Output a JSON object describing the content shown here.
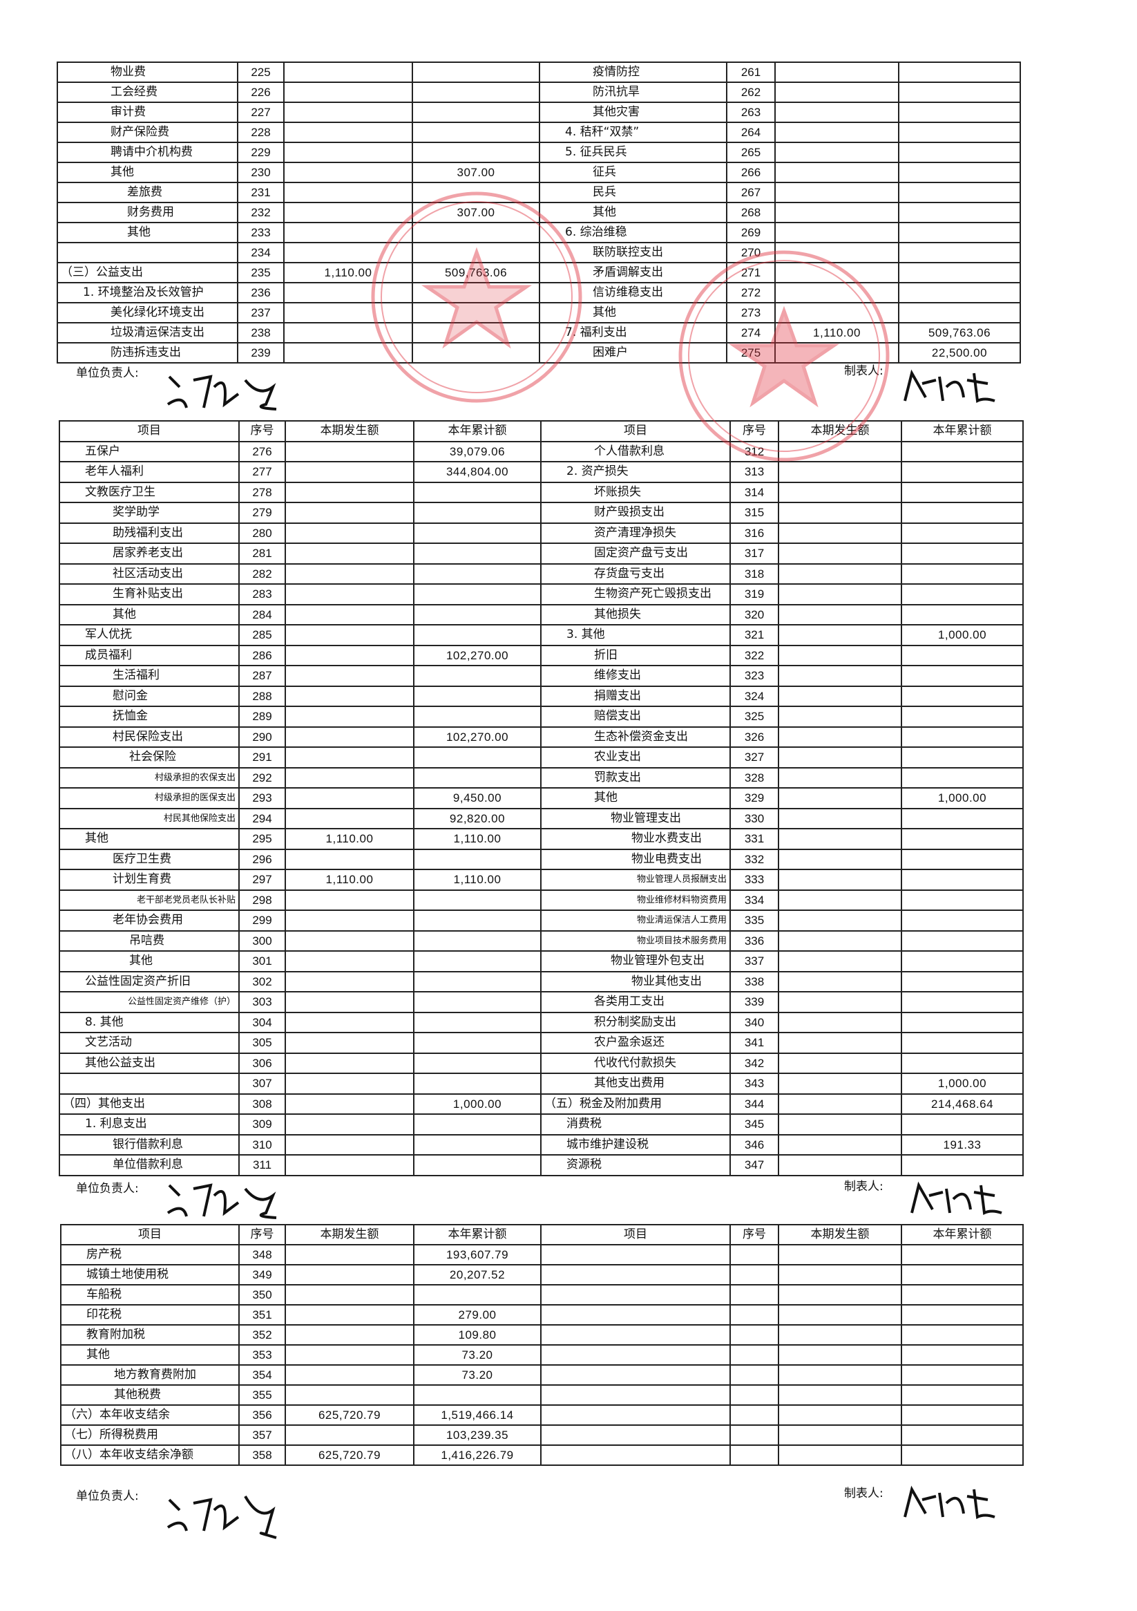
{
  "headers": {
    "item": "项目",
    "no": "序号",
    "current": "本期发生额",
    "ytd": "本年累计额"
  },
  "signatures": {
    "unit_head_label": "单位负责人:",
    "preparer_label": "制表人:"
  },
  "stamp_color": "#e0333f",
  "table1": {
    "left": [
      {
        "name": "物业费",
        "no": "225",
        "current": "",
        "ytd": "",
        "level": 2
      },
      {
        "name": "工会经费",
        "no": "226",
        "current": "",
        "ytd": "",
        "level": 2
      },
      {
        "name": "审计费",
        "no": "227",
        "current": "",
        "ytd": "",
        "level": 2
      },
      {
        "name": "财产保险费",
        "no": "228",
        "current": "",
        "ytd": "",
        "level": 2
      },
      {
        "name": "聘请中介机构费",
        "no": "229",
        "current": "",
        "ytd": "",
        "level": 2
      },
      {
        "name": "其他",
        "no": "230",
        "current": "",
        "ytd": "307.00",
        "level": 2
      },
      {
        "name": "差旅费",
        "no": "231",
        "current": "",
        "ytd": "",
        "level": 3
      },
      {
        "name": "财务费用",
        "no": "232",
        "current": "",
        "ytd": "307.00",
        "level": 3
      },
      {
        "name": "其他",
        "no": "233",
        "current": "",
        "ytd": "",
        "level": 3
      },
      {
        "name": "",
        "no": "234",
        "current": "",
        "ytd": "",
        "level": 2
      },
      {
        "name": "（三）公益支出",
        "no": "235",
        "current": "1,110.00",
        "ytd": "509,763.06",
        "level": 0
      },
      {
        "name": "1. 环境整治及长效管护",
        "no": "236",
        "current": "",
        "ytd": "",
        "level": 1
      },
      {
        "name": "美化绿化环境支出",
        "no": "237",
        "current": "",
        "ytd": "",
        "level": 2
      },
      {
        "name": "垃圾清运保洁支出",
        "no": "238",
        "current": "",
        "ytd": "",
        "level": 2
      },
      {
        "name": "防违拆违支出",
        "no": "239",
        "current": "",
        "ytd": "",
        "level": 2
      }
    ],
    "right": [
      {
        "name": "疫情防控",
        "no": "261",
        "current": "",
        "ytd": "",
        "level": 2
      },
      {
        "name": "防汛抗旱",
        "no": "262",
        "current": "",
        "ytd": "",
        "level": 2
      },
      {
        "name": "其他灾害",
        "no": "263",
        "current": "",
        "ytd": "",
        "level": 2
      },
      {
        "name": "4. 秸秆“双禁”",
        "no": "264",
        "current": "",
        "ytd": "",
        "level": 1
      },
      {
        "name": "5. 征兵民兵",
        "no": "265",
        "current": "",
        "ytd": "",
        "level": 1
      },
      {
        "name": "征兵",
        "no": "266",
        "current": "",
        "ytd": "",
        "level": 2
      },
      {
        "name": "民兵",
        "no": "267",
        "current": "",
        "ytd": "",
        "level": 2
      },
      {
        "name": "其他",
        "no": "268",
        "current": "",
        "ytd": "",
        "level": 2
      },
      {
        "name": "6. 综治维稳",
        "no": "269",
        "current": "",
        "ytd": "",
        "level": 1
      },
      {
        "name": "联防联控支出",
        "no": "270",
        "current": "",
        "ytd": "",
        "level": 2
      },
      {
        "name": "矛盾调解支出",
        "no": "271",
        "current": "",
        "ytd": "",
        "level": 2
      },
      {
        "name": "信访维稳支出",
        "no": "272",
        "current": "",
        "ytd": "",
        "level": 2
      },
      {
        "name": "其他",
        "no": "273",
        "current": "",
        "ytd": "",
        "level": 2
      },
      {
        "name": "7. 福利支出",
        "no": "274",
        "current": "1,110.00",
        "ytd": "509,763.06",
        "level": 1
      },
      {
        "name": "困难户",
        "no": "275",
        "current": "",
        "ytd": "22,500.00",
        "level": 2
      }
    ]
  },
  "table2": {
    "left": [
      {
        "name": "五保户",
        "no": "276",
        "current": "",
        "ytd": "39,079.06",
        "level": 1
      },
      {
        "name": "老年人福利",
        "no": "277",
        "current": "",
        "ytd": "344,804.00",
        "level": 1
      },
      {
        "name": "文教医疗卫生",
        "no": "278",
        "current": "",
        "ytd": "",
        "level": 1
      },
      {
        "name": "奖学助学",
        "no": "279",
        "current": "",
        "ytd": "",
        "level": 2
      },
      {
        "name": "助残福利支出",
        "no": "280",
        "current": "",
        "ytd": "",
        "level": 2
      },
      {
        "name": "居家养老支出",
        "no": "281",
        "current": "",
        "ytd": "",
        "level": 2
      },
      {
        "name": "社区活动支出",
        "no": "282",
        "current": "",
        "ytd": "",
        "level": 2
      },
      {
        "name": "生育补贴支出",
        "no": "283",
        "current": "",
        "ytd": "",
        "level": 2
      },
      {
        "name": "其他",
        "no": "284",
        "current": "",
        "ytd": "",
        "level": 2
      },
      {
        "name": "军人优抚",
        "no": "285",
        "current": "",
        "ytd": "",
        "level": 1
      },
      {
        "name": "成员福利",
        "no": "286",
        "current": "",
        "ytd": "102,270.00",
        "level": 1
      },
      {
        "name": "生活福利",
        "no": "287",
        "current": "",
        "ytd": "",
        "level": 2
      },
      {
        "name": "慰问金",
        "no": "288",
        "current": "",
        "ytd": "",
        "level": 2
      },
      {
        "name": "抚恤金",
        "no": "289",
        "current": "",
        "ytd": "",
        "level": 2
      },
      {
        "name": "村民保险支出",
        "no": "290",
        "current": "",
        "ytd": "102,270.00",
        "level": 2
      },
      {
        "name": "社会保险",
        "no": "291",
        "current": "",
        "ytd": "",
        "level": 3
      },
      {
        "name": "村级承担的农保支出",
        "no": "292",
        "current": "",
        "ytd": "",
        "level": "s"
      },
      {
        "name": "村级承担的医保支出",
        "no": "293",
        "current": "",
        "ytd": "9,450.00",
        "level": "s"
      },
      {
        "name": "村民其他保险支出",
        "no": "294",
        "current": "",
        "ytd": "92,820.00",
        "level": "s"
      },
      {
        "name": "其他",
        "no": "295",
        "current": "1,110.00",
        "ytd": "1,110.00",
        "level": 1
      },
      {
        "name": "医疗卫生费",
        "no": "296",
        "current": "",
        "ytd": "",
        "level": 2
      },
      {
        "name": "计划生育费",
        "no": "297",
        "current": "1,110.00",
        "ytd": "1,110.00",
        "level": 2
      },
      {
        "name": "老干部老党员老队长补贴",
        "no": "298",
        "current": "",
        "ytd": "",
        "level": "s"
      },
      {
        "name": "老年协会费用",
        "no": "299",
        "current": "",
        "ytd": "",
        "level": 2
      },
      {
        "name": "吊唁费",
        "no": "300",
        "current": "",
        "ytd": "",
        "level": 3
      },
      {
        "name": "其他",
        "no": "301",
        "current": "",
        "ytd": "",
        "level": 3
      },
      {
        "name": "公益性固定资产折旧",
        "no": "302",
        "current": "",
        "ytd": "",
        "level": 1
      },
      {
        "name": "公益性固定资产维修（护）",
        "no": "303",
        "current": "",
        "ytd": "",
        "level": "s"
      },
      {
        "name": "8. 其他",
        "no": "304",
        "current": "",
        "ytd": "",
        "level": 1
      },
      {
        "name": "文艺活动",
        "no": "305",
        "current": "",
        "ytd": "",
        "level": 1
      },
      {
        "name": "其他公益支出",
        "no": "306",
        "current": "",
        "ytd": "",
        "level": 1
      },
      {
        "name": "",
        "no": "307",
        "current": "",
        "ytd": "",
        "level": 1
      },
      {
        "name": "（四）其他支出",
        "no": "308",
        "current": "",
        "ytd": "1,000.00",
        "level": 0
      },
      {
        "name": "1. 利息支出",
        "no": "309",
        "current": "",
        "ytd": "",
        "level": 1
      },
      {
        "name": "银行借款利息",
        "no": "310",
        "current": "",
        "ytd": "",
        "level": 2
      },
      {
        "name": "单位借款利息",
        "no": "311",
        "current": "",
        "ytd": "",
        "level": 2
      }
    ],
    "right": [
      {
        "name": "个人借款利息",
        "no": "312",
        "current": "",
        "ytd": "",
        "level": 2
      },
      {
        "name": "2. 资产损失",
        "no": "313",
        "current": "",
        "ytd": "",
        "level": 1
      },
      {
        "name": "坏账损失",
        "no": "314",
        "current": "",
        "ytd": "",
        "level": 2
      },
      {
        "name": "财产毁损支出",
        "no": "315",
        "current": "",
        "ytd": "",
        "level": 2
      },
      {
        "name": "资产清理净损失",
        "no": "316",
        "current": "",
        "ytd": "",
        "level": 2
      },
      {
        "name": "固定资产盘亏支出",
        "no": "317",
        "current": "",
        "ytd": "",
        "level": 2
      },
      {
        "name": "存货盘亏支出",
        "no": "318",
        "current": "",
        "ytd": "",
        "level": 2
      },
      {
        "name": "生物资产死亡毁损支出",
        "no": "319",
        "current": "",
        "ytd": "",
        "level": 2
      },
      {
        "name": "其他损失",
        "no": "320",
        "current": "",
        "ytd": "",
        "level": 2
      },
      {
        "name": "3. 其他",
        "no": "321",
        "current": "",
        "ytd": "1,000.00",
        "level": 1
      },
      {
        "name": "折旧",
        "no": "322",
        "current": "",
        "ytd": "",
        "level": 2
      },
      {
        "name": "维修支出",
        "no": "323",
        "current": "",
        "ytd": "",
        "level": 2
      },
      {
        "name": "捐赠支出",
        "no": "324",
        "current": "",
        "ytd": "",
        "level": 2
      },
      {
        "name": "赔偿支出",
        "no": "325",
        "current": "",
        "ytd": "",
        "level": 2
      },
      {
        "name": "生态补偿资金支出",
        "no": "326",
        "current": "",
        "ytd": "",
        "level": 2
      },
      {
        "name": "农业支出",
        "no": "327",
        "current": "",
        "ytd": "",
        "level": 2
      },
      {
        "name": "罚款支出",
        "no": "328",
        "current": "",
        "ytd": "",
        "level": 2
      },
      {
        "name": "其他",
        "no": "329",
        "current": "",
        "ytd": "1,000.00",
        "level": 2
      },
      {
        "name": "物业管理支出",
        "no": "330",
        "current": "",
        "ytd": "",
        "level": 3
      },
      {
        "name": "物业水费支出",
        "no": "331",
        "current": "",
        "ytd": "",
        "level": 4
      },
      {
        "name": "物业电费支出",
        "no": "332",
        "current": "",
        "ytd": "",
        "level": 4
      },
      {
        "name": "物业管理人员报酬支出",
        "no": "333",
        "current": "",
        "ytd": "",
        "level": "s"
      },
      {
        "name": "物业维修材料物资费用",
        "no": "334",
        "current": "",
        "ytd": "",
        "level": "s"
      },
      {
        "name": "物业清运保洁人工费用",
        "no": "335",
        "current": "",
        "ytd": "",
        "level": "s"
      },
      {
        "name": "物业项目技术服务费用",
        "no": "336",
        "current": "",
        "ytd": "",
        "level": "s"
      },
      {
        "name": "物业管理外包支出",
        "no": "337",
        "current": "",
        "ytd": "",
        "level": 3
      },
      {
        "name": "物业其他支出",
        "no": "338",
        "current": "",
        "ytd": "",
        "level": 4
      },
      {
        "name": "各类用工支出",
        "no": "339",
        "current": "",
        "ytd": "",
        "level": 2
      },
      {
        "name": "积分制奖励支出",
        "no": "340",
        "current": "",
        "ytd": "",
        "level": 2
      },
      {
        "name": "农户盈余返还",
        "no": "341",
        "current": "",
        "ytd": "",
        "level": 2
      },
      {
        "name": "代收代付款损失",
        "no": "342",
        "current": "",
        "ytd": "",
        "level": 2
      },
      {
        "name": "其他支出费用",
        "no": "343",
        "current": "",
        "ytd": "1,000.00",
        "level": 2
      },
      {
        "name": "（五）税金及附加费用",
        "no": "344",
        "current": "",
        "ytd": "214,468.64",
        "level": 0
      },
      {
        "name": "消费税",
        "no": "345",
        "current": "",
        "ytd": "",
        "level": 1
      },
      {
        "name": "城市维护建设税",
        "no": "346",
        "current": "",
        "ytd": "191.33",
        "level": 1
      },
      {
        "name": "资源税",
        "no": "347",
        "current": "",
        "ytd": "",
        "level": 1
      }
    ]
  },
  "table3": {
    "left": [
      {
        "name": "房产税",
        "no": "348",
        "current": "",
        "ytd": "193,607.79",
        "level": 1
      },
      {
        "name": "城镇土地使用税",
        "no": "349",
        "current": "",
        "ytd": "20,207.52",
        "level": 1
      },
      {
        "name": "车船税",
        "no": "350",
        "current": "",
        "ytd": "",
        "level": 1
      },
      {
        "name": "印花税",
        "no": "351",
        "current": "",
        "ytd": "279.00",
        "level": 1
      },
      {
        "name": "教育附加税",
        "no": "352",
        "current": "",
        "ytd": "109.80",
        "level": 1
      },
      {
        "name": "其他",
        "no": "353",
        "current": "",
        "ytd": "73.20",
        "level": 1
      },
      {
        "name": "地方教育费附加",
        "no": "354",
        "current": "",
        "ytd": "73.20",
        "level": 2
      },
      {
        "name": "其他税费",
        "no": "355",
        "current": "",
        "ytd": "",
        "level": 2
      },
      {
        "name": "（六）本年收支结余",
        "no": "356",
        "current": "625,720.79",
        "ytd": "1,519,466.14",
        "level": 0
      },
      {
        "name": "（七）所得税费用",
        "no": "357",
        "current": "",
        "ytd": "103,239.35",
        "level": 0
      },
      {
        "name": "（八）本年收支结余净额",
        "no": "358",
        "current": "625,720.79",
        "ytd": "1,416,226.79",
        "level": 0
      }
    ],
    "right": []
  }
}
